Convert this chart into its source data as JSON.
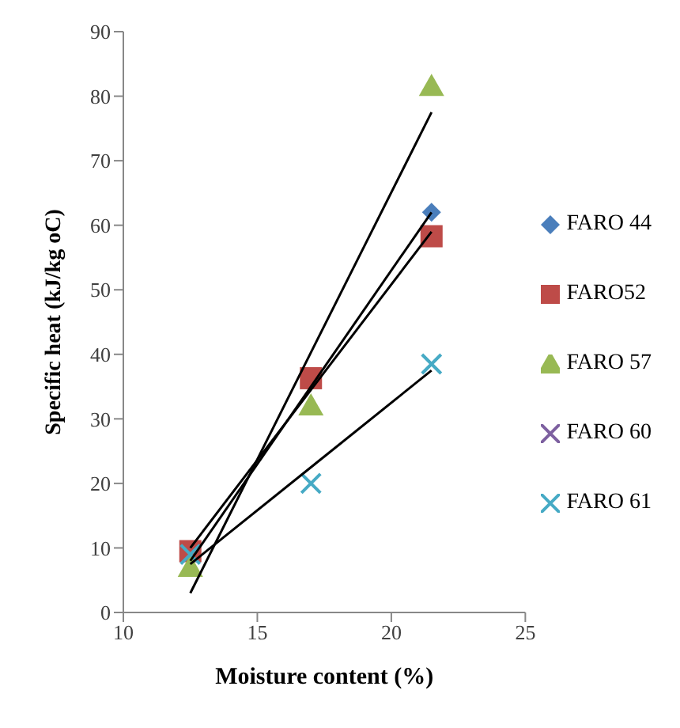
{
  "chart_data": {
    "type": "scatter",
    "xlabel": "Moisture content (%)",
    "ylabel": "Specific heat (kJ/kg oC)",
    "x": [
      12.5,
      17,
      21.5
    ],
    "xlim": [
      10,
      25
    ],
    "xticks": [
      10,
      15,
      20,
      25
    ],
    "ylim": [
      0,
      90
    ],
    "yticks": [
      0,
      10,
      20,
      30,
      40,
      50,
      60,
      70,
      80,
      90
    ],
    "grid": false,
    "legend": "right",
    "series": [
      {
        "name": "FARO 44",
        "color": "#4a7ebb",
        "marker": "diamond",
        "values": [
          null,
          null,
          62
        ]
      },
      {
        "name": "FARO52",
        "color": "#be4b48",
        "marker": "square",
        "values": [
          9.5,
          36.3,
          58.3
        ]
      },
      {
        "name": "FARO 57",
        "color": "#98b954",
        "marker": "triangle",
        "values": [
          7,
          32,
          81.5
        ]
      },
      {
        "name": "FARO 60",
        "color": "#7d60a0",
        "marker": "cross",
        "values": [
          null,
          null,
          null
        ]
      },
      {
        "name": "FARO 61",
        "color": "#46aac5",
        "marker": "cross",
        "values": [
          9,
          20,
          38.5
        ]
      },
      {
        "type": "line",
        "color": "#000000",
        "marker": "none",
        "values": [
          8,
          35,
          62
        ]
      },
      {
        "type": "line",
        "color": "#000000",
        "marker": "none",
        "values": [
          10,
          34.5,
          59
        ]
      },
      {
        "type": "line",
        "color": "#000000",
        "marker": "none",
        "values": [
          3,
          40.3,
          77.5
        ]
      },
      {
        "type": "line",
        "color": "#000000",
        "marker": "none",
        "values": [
          7.5,
          22.5,
          37.5
        ]
      }
    ]
  }
}
